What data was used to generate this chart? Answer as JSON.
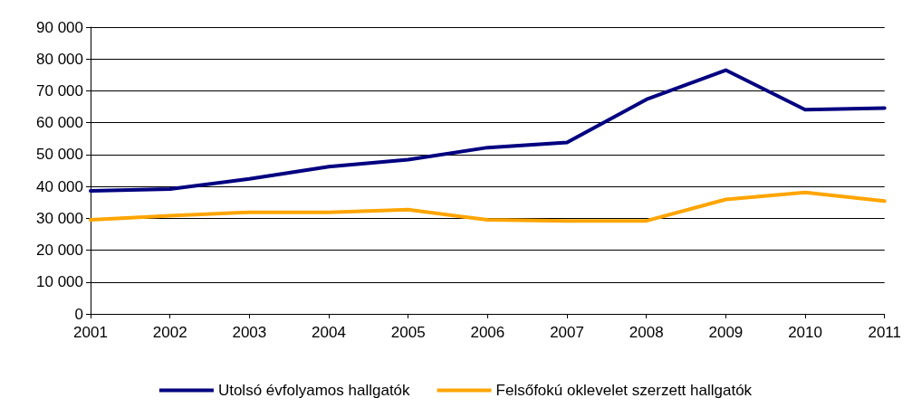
{
  "chart_data": {
    "type": "line",
    "x": [
      2001,
      2002,
      2003,
      2004,
      2005,
      2006,
      2007,
      2008,
      2009,
      2010,
      2011
    ],
    "xlim": [
      2001,
      2011
    ],
    "xticks": [
      2001,
      2002,
      2003,
      2004,
      2005,
      2006,
      2007,
      2008,
      2009,
      2010,
      2011
    ],
    "ylim": [
      0,
      90000
    ],
    "yticks": [
      0,
      {
        "value": 10000,
        "label": "10 000"
      },
      {
        "value": 20000,
        "label": "20 000"
      },
      {
        "value": 30000,
        "label": "30 000"
      },
      {
        "value": 40000,
        "label": "40 000"
      },
      {
        "value": 50000,
        "label": "50 000"
      },
      {
        "value": 60000,
        "label": "60 000"
      },
      {
        "value": 70000,
        "label": "70 000"
      },
      {
        "value": 80000,
        "label": "80 000"
      },
      {
        "value": 90000,
        "label": "90 000"
      }
    ],
    "series": [
      {
        "name": "Utolsó évfolyamos hallgatók",
        "color": "#000080",
        "values": [
          38600,
          39200,
          42400,
          46200,
          48400,
          52200,
          53800,
          67300,
          76500,
          64100,
          64600
        ]
      },
      {
        "name": "Felsőfokú oklevelet szerzett hallgatók",
        "color": "#ffa500",
        "values": [
          29500,
          30800,
          31900,
          31900,
          32700,
          29500,
          29200,
          29200,
          35900,
          38100,
          35400
        ]
      }
    ],
    "grid": "y",
    "legend": "bottom",
    "marker": "none",
    "line_style": "solid"
  }
}
